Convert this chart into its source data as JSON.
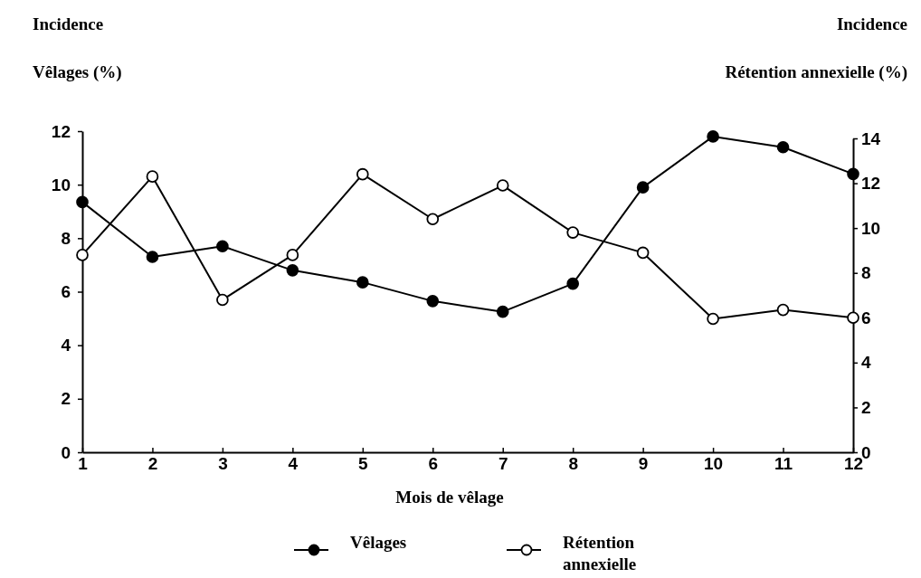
{
  "chart_data": {
    "type": "line",
    "xlabel": "Mois de vêlage",
    "ylabel": "Incidence\nVêlages (%)",
    "y2label": "Incidence\nRétention annexielle (%)",
    "x": [
      1,
      2,
      3,
      4,
      5,
      6,
      7,
      8,
      9,
      10,
      11,
      12
    ],
    "xlim": [
      1,
      12
    ],
    "xticks": [
      1,
      2,
      3,
      4,
      5,
      6,
      7,
      8,
      9,
      10,
      11,
      12
    ],
    "ylim": [
      0,
      12
    ],
    "yticks": [
      0,
      2,
      4,
      6,
      8,
      10,
      12
    ],
    "y2lim": [
      0,
      14
    ],
    "y2ticks": [
      0,
      2,
      4,
      6,
      8,
      10,
      12,
      14
    ],
    "marker": "circle",
    "legend": "bottom",
    "grid": false,
    "series": [
      {
        "name": "Vêlages",
        "color": "#000000",
        "values": [
          9.35,
          7.3,
          7.7,
          6.8,
          6.35,
          5.65,
          5.25,
          6.3,
          9.9,
          11.8,
          11.4,
          10.4
        ]
      },
      {
        "name": "Rétention annexielle",
        "color": "#000000",
        "axis": "y2",
        "values": [
          8.8,
          12.3,
          6.8,
          8.8,
          12.4,
          10.4,
          11.9,
          9.8,
          8.9,
          5.95,
          6.35,
          6.0
        ]
      }
    ]
  }
}
